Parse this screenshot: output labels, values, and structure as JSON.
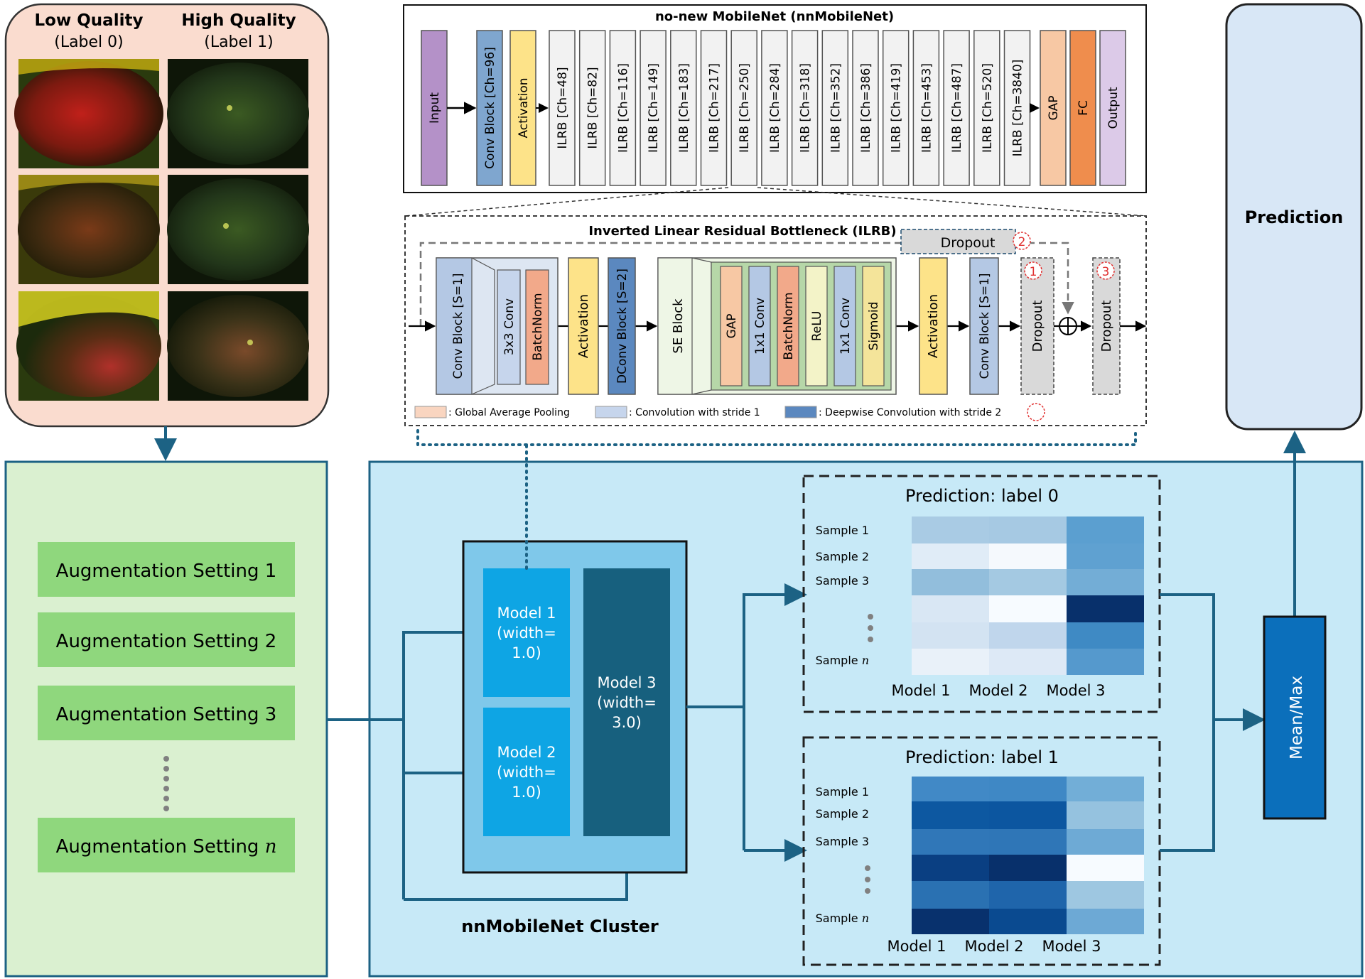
{
  "quality_panel": {
    "low_title": "Low Quality",
    "low_label": "(Label 0)",
    "high_title": "High Quality",
    "high_label": "(Label 1)"
  },
  "augmentation": {
    "items": [
      "Augmentation Setting 1",
      "Augmentation Setting 2",
      "Augmentation Setting 3"
    ],
    "last_prefix": "Augmentation Setting ",
    "last_var": "n"
  },
  "network": {
    "title": "no-new MobileNet (nnMobileNet)",
    "input": "Input",
    "conv": "Conv Block [Ch=96]",
    "activation": "Activation",
    "ilrb": [
      "ILRB [Ch=48]",
      "ILRB [Ch=82]",
      "ILRB [Ch=116]",
      "ILRB [Ch=149]",
      "ILRB [Ch=183]",
      "ILRB [Ch=217]",
      "ILRB [Ch=250]",
      "ILRB [Ch=284]",
      "ILRB [Ch=318]",
      "ILRB [Ch=352]",
      "ILRB [Ch=386]",
      "ILRB [Ch=419]",
      "ILRB [Ch=453]",
      "ILRB [Ch=487]",
      "ILRB [Ch=520]",
      "ILRB [Ch=3840]"
    ],
    "gap": "GAP",
    "fc": "FC",
    "output": "Output"
  },
  "ilrb_detail": {
    "title": "Inverted Linear Residual Bottleneck (ILRB)",
    "conv_block": "Conv Block [S=1]",
    "conv3": "3x3 Conv",
    "batchnorm": "BatchNorm",
    "activation": "Activation",
    "dconv": "DConv Block [S=2]",
    "se_block": "SE Block",
    "se_items": [
      "GAP",
      "1x1 Conv",
      "BatchNorm",
      "ReLU",
      "1x1 Conv",
      "Sigmoid"
    ],
    "activation2": "Activation",
    "conv_block2": "Conv Block [S=1]",
    "dropout": "Dropout",
    "markers": [
      "1",
      "2",
      "3"
    ],
    "legend": [
      ": Global Average Pooling",
      ": Convolution with stride 1",
      ": Deepwise Convolution with stride 2"
    ]
  },
  "cluster": {
    "title": "nnMobileNet Cluster",
    "model1": [
      "Model 1",
      "(width=",
      "1.0)"
    ],
    "model2": [
      "Model 2",
      "(width=",
      "1.0)"
    ],
    "model3": [
      "Model 3",
      "(width=",
      "3.0)"
    ]
  },
  "heatmap0": {
    "title": "Prediction: label 0",
    "rows": [
      "Sample 1",
      "Sample 2",
      "Sample 3"
    ],
    "last_prefix": "Sample ",
    "last_var": "n",
    "cols": [
      "Model 1",
      "Model 2",
      "Model 3"
    ],
    "colors": [
      [
        "#a9cbe4",
        "#a6c9e3",
        "#5b9fd0"
      ],
      [
        "#e0ecf7",
        "#f5f9fd",
        "#5fa1d1"
      ],
      [
        "#92bedc",
        "#a4c9e2",
        "#73add6"
      ],
      [
        "#d9e7f4",
        "#f7fbff",
        "#08306b"
      ],
      [
        "#d3e3f2",
        "#c0d6ec",
        "#3f8ac4"
      ],
      [
        "#e9f1f9",
        "#dde9f6",
        "#5599cd"
      ]
    ]
  },
  "heatmap1": {
    "title": "Prediction: label 1",
    "rows": [
      "Sample 1",
      "Sample 2",
      "Sample 3"
    ],
    "last_prefix": "Sample ",
    "last_var": "n",
    "cols": [
      "Model 1",
      "Model 2",
      "Model 3"
    ],
    "colors": [
      [
        "#4189c6",
        "#3f88c5",
        "#72aed7"
      ],
      [
        "#0d58a1",
        "#0c56a0",
        "#95c2df"
      ],
      [
        "#3077b8",
        "#2f76b7",
        "#6eaad5"
      ],
      [
        "#0a3f82",
        "#08306b",
        "#f7fbff"
      ],
      [
        "#2a71b2",
        "#1f65ab",
        "#9ec7e1"
      ],
      [
        "#08316d",
        "#0a4a90",
        "#6da9d5"
      ]
    ]
  },
  "aggregate": "Mean/Max",
  "prediction": "Prediction",
  "colors": {
    "quality_bg": "#fadccf",
    "aug_bg": "#daf0d0",
    "aug_item": "#8fd77d",
    "main_bg": "#c7e9f7",
    "cluster_bg": "#7fc8ea",
    "model_light": "#0ea5e4",
    "model_dark": "#17607e",
    "arrow": "#1c6284",
    "meanmax": "#0b6fbb",
    "prediction_bg": "#d8e7f6"
  }
}
